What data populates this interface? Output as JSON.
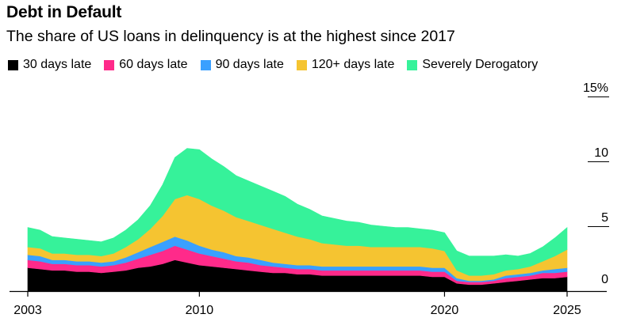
{
  "title": "Debt in Default",
  "subtitle": "The share of US loans in delinquency is at the highest since 2017",
  "chart_data": {
    "type": "area",
    "stacked": true,
    "title": "Debt in Default",
    "subtitle": "The share of US loans in delinquency is at the highest since 2017",
    "xlabel": "",
    "ylabel": "",
    "xlim": [
      2003,
      2025.5
    ],
    "ylim": [
      0,
      15
    ],
    "x_tick_labels": [
      "2003",
      "2010",
      "2020",
      "2025"
    ],
    "y_tick_labels": [
      "15%",
      "10",
      "5",
      "0"
    ],
    "legend_placement": "top",
    "grid": false,
    "x": [
      2003,
      2003.5,
      2004,
      2004.5,
      2005,
      2005.5,
      2006,
      2006.5,
      2007,
      2007.5,
      2008,
      2008.5,
      2009,
      2009.5,
      2010,
      2010.5,
      2011,
      2011.5,
      2012,
      2012.5,
      2013,
      2013.5,
      2014,
      2014.5,
      2015,
      2015.5,
      2016,
      2016.5,
      2017,
      2017.5,
      2018,
      2018.5,
      2019,
      2019.5,
      2020,
      2020.5,
      2021,
      2021.5,
      2022,
      2022.5,
      2023,
      2023.5,
      2024,
      2024.5,
      2025
    ],
    "series": [
      {
        "name": "30 days late",
        "color": "#000000",
        "values": [
          1.8,
          1.7,
          1.6,
          1.6,
          1.5,
          1.5,
          1.4,
          1.5,
          1.6,
          1.8,
          1.9,
          2.1,
          2.4,
          2.2,
          2.0,
          1.9,
          1.8,
          1.7,
          1.6,
          1.5,
          1.4,
          1.4,
          1.3,
          1.3,
          1.2,
          1.2,
          1.2,
          1.2,
          1.2,
          1.2,
          1.2,
          1.2,
          1.2,
          1.1,
          1.1,
          0.6,
          0.5,
          0.5,
          0.6,
          0.7,
          0.8,
          0.9,
          1.0,
          1.0,
          1.1
        ]
      },
      {
        "name": "60 days late",
        "color": "#ff2a8a",
        "values": [
          0.6,
          0.6,
          0.5,
          0.5,
          0.5,
          0.5,
          0.5,
          0.5,
          0.6,
          0.7,
          0.9,
          1.0,
          1.1,
          1.0,
          0.9,
          0.8,
          0.7,
          0.6,
          0.6,
          0.5,
          0.5,
          0.4,
          0.4,
          0.4,
          0.4,
          0.4,
          0.4,
          0.4,
          0.4,
          0.4,
          0.4,
          0.4,
          0.4,
          0.4,
          0.4,
          0.2,
          0.2,
          0.2,
          0.2,
          0.3,
          0.3,
          0.3,
          0.4,
          0.4,
          0.4
        ]
      },
      {
        "name": "90 days late",
        "color": "#3aa0ff",
        "values": [
          0.4,
          0.4,
          0.3,
          0.3,
          0.3,
          0.3,
          0.3,
          0.3,
          0.4,
          0.5,
          0.6,
          0.7,
          0.7,
          0.7,
          0.6,
          0.5,
          0.5,
          0.4,
          0.4,
          0.4,
          0.3,
          0.3,
          0.3,
          0.3,
          0.3,
          0.3,
          0.3,
          0.3,
          0.3,
          0.3,
          0.3,
          0.3,
          0.3,
          0.3,
          0.3,
          0.2,
          0.1,
          0.1,
          0.1,
          0.2,
          0.2,
          0.2,
          0.2,
          0.3,
          0.3
        ]
      },
      {
        "name": "120+ days late",
        "color": "#f5c431",
        "values": [
          0.6,
          0.6,
          0.5,
          0.5,
          0.5,
          0.5,
          0.5,
          0.6,
          0.8,
          1.0,
          1.4,
          2.0,
          2.9,
          3.5,
          3.6,
          3.4,
          3.2,
          3.0,
          2.8,
          2.7,
          2.6,
          2.4,
          2.2,
          2.0,
          1.8,
          1.7,
          1.6,
          1.6,
          1.5,
          1.5,
          1.5,
          1.5,
          1.5,
          1.5,
          1.3,
          0.6,
          0.4,
          0.4,
          0.4,
          0.4,
          0.4,
          0.5,
          0.7,
          1.0,
          1.4
        ]
      },
      {
        "name": "Severely Derogatory",
        "color": "#36f29a",
        "values": [
          1.5,
          1.4,
          1.3,
          1.2,
          1.2,
          1.1,
          1.1,
          1.2,
          1.3,
          1.5,
          1.8,
          2.4,
          3.2,
          3.6,
          3.8,
          3.6,
          3.4,
          3.2,
          3.1,
          3.0,
          2.9,
          2.8,
          2.5,
          2.3,
          2.1,
          2.0,
          1.9,
          1.8,
          1.7,
          1.6,
          1.5,
          1.5,
          1.4,
          1.4,
          1.4,
          1.5,
          1.5,
          1.5,
          1.4,
          1.2,
          1.0,
          1.0,
          1.1,
          1.4,
          1.7
        ]
      }
    ]
  }
}
